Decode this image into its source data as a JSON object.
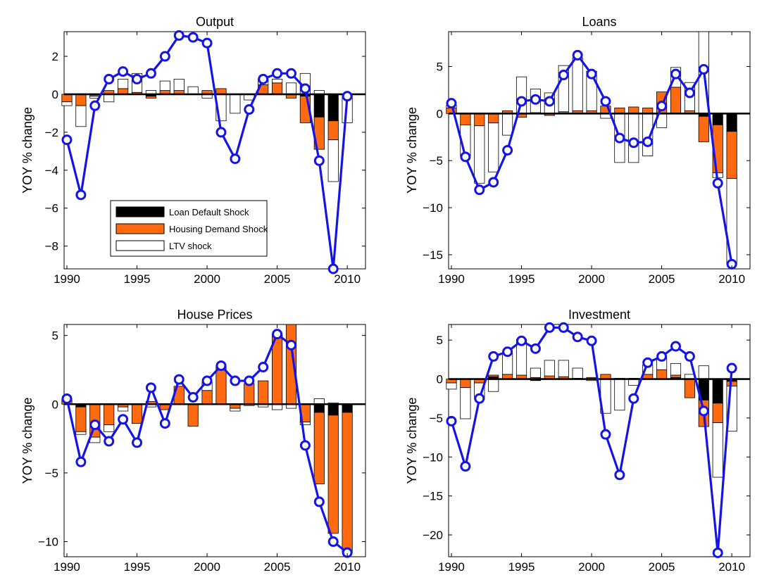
{
  "colors": {
    "loan_default": "#000000",
    "housing_demand": "#ff6a10",
    "ltv": "#ffffff",
    "line": "#1414e6",
    "axis": "#000000"
  },
  "legend": {
    "items": [
      "Loan Default Shock",
      "Housing Demand Shock",
      "LTV shock"
    ]
  },
  "chart_data": [
    {
      "type": "bar",
      "title": "Output",
      "ylabel": "YOY % change",
      "xlabel": "",
      "xlim": [
        1989.8,
        2011.3
      ],
      "ylim": [
        -9.2,
        3.3
      ],
      "xticks": [
        1990,
        1995,
        2000,
        2005,
        2010
      ],
      "yticks": [
        -8,
        -6,
        -4,
        -2,
        0,
        2
      ],
      "legend_position": "lower-left",
      "years": [
        1990,
        1991,
        1992,
        1993,
        1994,
        1995,
        1996,
        1997,
        1998,
        1999,
        2000,
        2001,
        2002,
        2003,
        2004,
        2005,
        2006,
        2007,
        2008,
        2009,
        2010
      ],
      "series": [
        {
          "name": "Loan Default Shock",
          "values": [
            0,
            0,
            0,
            0,
            0,
            0,
            -0.1,
            0,
            0,
            0,
            0,
            0,
            0,
            0,
            0,
            0,
            0,
            -0.1,
            -1.2,
            -1.4,
            0
          ]
        },
        {
          "name": "Housing Demand Shock",
          "values": [
            -0.4,
            -0.6,
            -0.1,
            0.2,
            0.3,
            0.1,
            -0.1,
            0.2,
            0.2,
            0,
            0.2,
            0.3,
            0,
            0,
            0.5,
            0.6,
            -0.2,
            -1.4,
            -1.7,
            -1.0,
            -0.1
          ]
        },
        {
          "name": "LTV shock",
          "values": [
            -0.2,
            -1.1,
            -0.1,
            -0.4,
            0.5,
            1.0,
            0.2,
            0.5,
            0.6,
            0.4,
            -0.2,
            -1.4,
            -1.0,
            -0.3,
            0.3,
            0.2,
            0.6,
            1.1,
            0.2,
            -2.2,
            -1.4
          ]
        },
        {
          "name": "",
          "type": "line",
          "values": [
            -2.4,
            -5.3,
            -0.6,
            0.8,
            1.2,
            0.8,
            1.1,
            2.0,
            3.1,
            3.0,
            2.7,
            -2.0,
            -3.4,
            -0.8,
            0.8,
            1.1,
            1.1,
            0.3,
            -3.5,
            -9.2,
            -0.1
          ]
        }
      ]
    },
    {
      "type": "bar",
      "title": "Loans",
      "ylabel": "YOY % change",
      "xlabel": "",
      "xlim": [
        1989.8,
        2011.3
      ],
      "ylim": [
        -16.5,
        8.7
      ],
      "xticks": [
        1990,
        1995,
        2000,
        2005,
        2010
      ],
      "yticks": [
        -15,
        -10,
        -5,
        0,
        5
      ],
      "years": [
        1990,
        1991,
        1992,
        1993,
        1994,
        1995,
        1996,
        1997,
        1998,
        1999,
        2000,
        2001,
        2002,
        2003,
        2004,
        2005,
        2006,
        2007,
        2008,
        2009,
        2010
      ],
      "series": [
        {
          "name": "Loan Default Shock",
          "values": [
            0,
            0,
            0,
            0,
            0,
            0,
            0,
            0,
            0,
            0,
            0,
            0,
            0,
            0,
            0,
            0,
            0,
            0,
            -0.3,
            -1.2,
            -1.9
          ]
        },
        {
          "name": "Housing Demand Shock",
          "values": [
            0.6,
            -1.2,
            -1.3,
            -1.0,
            0.3,
            -0.4,
            0.1,
            -0.2,
            0.2,
            0.3,
            0.3,
            0.8,
            0.6,
            0.7,
            0.6,
            2.3,
            2.8,
            0.3,
            -2.7,
            -5.1,
            -5.0
          ]
        },
        {
          "name": "LTV shock",
          "values": [
            0.3,
            -3.3,
            -6.1,
            -5.2,
            -2.3,
            3.9,
            2.5,
            2.2,
            4.9,
            5.6,
            4.2,
            -0.5,
            -5.2,
            -5.2,
            -4.5,
            -1.5,
            2.1,
            3.0,
            8.7,
            -0.5,
            -9.1
          ]
        },
        {
          "name": "",
          "type": "line",
          "values": [
            1.1,
            -4.6,
            -8.1,
            -7.3,
            -3.9,
            1.3,
            1.5,
            1.3,
            4.1,
            6.2,
            4.2,
            1.3,
            -2.6,
            -3.1,
            -3.0,
            0.8,
            4.2,
            2.2,
            4.7,
            -7.4,
            -16.0
          ]
        }
      ]
    },
    {
      "type": "bar",
      "title": "House Prices",
      "ylabel": "YOY % change",
      "xlabel": "",
      "xlim": [
        1989.8,
        2011.3
      ],
      "ylim": [
        -11.1,
        5.8
      ],
      "xticks": [
        1990,
        1995,
        2000,
        2005,
        2010
      ],
      "yticks": [
        -10,
        -5,
        0,
        5
      ],
      "years": [
        1990,
        1991,
        1992,
        1993,
        1994,
        1995,
        1996,
        1997,
        1998,
        1999,
        2000,
        2001,
        2002,
        2003,
        2004,
        2005,
        2006,
        2007,
        2008,
        2009,
        2010
      ],
      "series": [
        {
          "name": "Loan Default Shock",
          "values": [
            0,
            -0.2,
            0,
            0,
            0,
            0,
            0,
            0,
            0,
            0,
            0,
            0,
            0,
            0,
            0,
            0,
            0,
            0,
            -0.6,
            -0.8,
            -0.6
          ]
        },
        {
          "name": "Housing Demand Shock",
          "values": [
            0.4,
            -1.8,
            -2.4,
            -1.5,
            -0.2,
            -1.4,
            0.2,
            -0.4,
            1.3,
            -1.6,
            1.0,
            2.8,
            -0.3,
            1.5,
            1.7,
            5.1,
            5.8,
            -1.3,
            -5.2,
            -8.6,
            -10.2
          ]
        },
        {
          "name": "LTV shock",
          "values": [
            0,
            -0.2,
            -0.4,
            -0.5,
            -0.3,
            0,
            -0.2,
            0,
            0,
            0,
            0.6,
            0,
            -0.2,
            -0.1,
            -0.2,
            -0.4,
            -0.3,
            -0.2,
            0.4,
            0.1,
            0
          ]
        },
        {
          "name": "",
          "type": "line",
          "values": [
            0.4,
            -4.2,
            -1.5,
            -2.7,
            -1.1,
            -2.8,
            1.2,
            -1.4,
            1.8,
            0.5,
            1.7,
            2.8,
            1.7,
            1.7,
            2.7,
            5.1,
            4.3,
            -3.0,
            -7.1,
            -10.0,
            -10.8
          ]
        }
      ]
    },
    {
      "type": "bar",
      "title": "Investment",
      "ylabel": "YOY % change",
      "xlabel": "",
      "xlim": [
        1989.8,
        2011.3
      ],
      "ylim": [
        -22.8,
        7.0
      ],
      "xticks": [
        1990,
        1995,
        2000,
        2005,
        2010
      ],
      "yticks": [
        -20,
        -15,
        -10,
        -5,
        0,
        5
      ],
      "years": [
        1990,
        1991,
        1992,
        1993,
        1994,
        1995,
        1996,
        1997,
        1998,
        1999,
        2000,
        2001,
        2002,
        2003,
        2004,
        2005,
        2006,
        2007,
        2008,
        2009,
        2010
      ],
      "series": [
        {
          "name": "Loan Default Shock",
          "values": [
            0,
            0,
            0,
            0.3,
            0,
            0,
            -0.2,
            0,
            0,
            0,
            0,
            0,
            0,
            0,
            0,
            0,
            0.2,
            -0.1,
            -2.7,
            -3.1,
            -0.3
          ]
        },
        {
          "name": "Housing Demand Shock",
          "values": [
            -0.5,
            -1.1,
            -0.5,
            0.2,
            0.6,
            0.5,
            0.2,
            0.4,
            0.3,
            0.1,
            0.2,
            0.6,
            0.1,
            0.1,
            0.6,
            1.2,
            0.3,
            -2.3,
            -3.4,
            -2.5,
            -0.6
          ]
        },
        {
          "name": "LTV shock",
          "values": [
            -0.8,
            -4.0,
            -2.1,
            -1.6,
            2.7,
            4.6,
            1.2,
            2.0,
            2.1,
            1.3,
            -0.2,
            -4.4,
            -4.0,
            -0.8,
            1.2,
            1.5,
            1.5,
            0.6,
            1.7,
            -7.0,
            -5.8
          ]
        },
        {
          "name": "",
          "type": "line",
          "values": [
            -5.4,
            -11.2,
            -2.5,
            2.9,
            3.5,
            4.9,
            3.9,
            6.6,
            6.6,
            5.4,
            4.9,
            -7.1,
            -12.3,
            -2.5,
            2.1,
            2.9,
            4.2,
            2.9,
            -4.1,
            -22.3,
            1.4
          ]
        }
      ]
    }
  ]
}
